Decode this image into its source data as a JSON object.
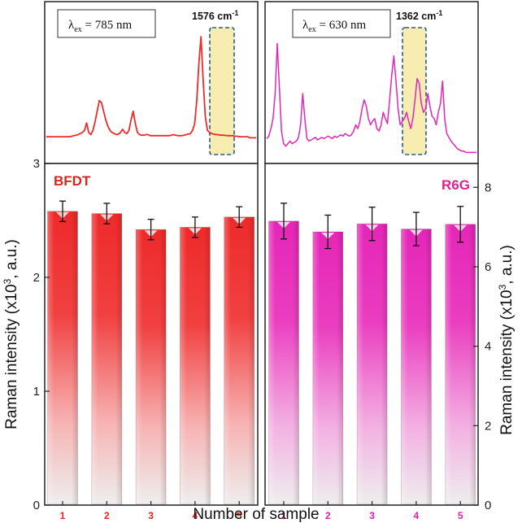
{
  "colors": {
    "bfdt": "#ee2a2a",
    "r6g": "#e525b7",
    "bfdt_label": "#d7261f",
    "r6g_label": "#e0208e",
    "highlight_fill": "#f7edb1",
    "highlight_stroke": "#2e5a8a"
  },
  "chart_data": [
    {
      "id": "spectrum-bfdt",
      "type": "line",
      "excitation": {
        "symbol": "λ",
        "sub": "ex",
        "value": " = 785 nm"
      },
      "peak_label": {
        "text": "1576 cm",
        "sup": "-1"
      },
      "series": [
        {
          "name": "BFDT spectrum",
          "values": [
            0.06,
            0.06,
            0.06,
            0.06,
            0.06,
            0.06,
            0.06,
            0.06,
            0.06,
            0.06,
            0.06,
            0.06,
            0.065,
            0.07,
            0.075,
            0.08,
            0.09,
            0.1,
            0.12,
            0.19,
            0.1,
            0.08,
            0.12,
            0.2,
            0.3,
            0.4,
            0.38,
            0.3,
            0.22,
            0.16,
            0.12,
            0.1,
            0.09,
            0.08,
            0.085,
            0.1,
            0.13,
            0.1,
            0.09,
            0.12,
            0.22,
            0.3,
            0.18,
            0.1,
            0.08,
            0.075,
            0.075,
            0.08,
            0.08,
            0.07,
            0.07,
            0.07,
            0.07,
            0.07,
            0.07,
            0.07,
            0.07,
            0.07,
            0.07,
            0.075,
            0.08,
            0.075,
            0.07,
            0.07,
            0.07,
            0.075,
            0.08,
            0.085,
            0.09,
            0.12,
            0.18,
            0.4,
            0.75,
            1.0,
            0.6,
            0.25,
            0.12,
            0.1,
            0.09,
            0.085,
            0.08,
            0.08,
            0.075,
            0.075,
            0.075,
            0.07,
            0.07,
            0.07,
            0.07,
            0.065,
            0.065,
            0.06,
            0.06,
            0.06,
            0.06,
            0.06,
            0.05,
            0.05,
            0.05,
            0.05
          ]
        }
      ]
    },
    {
      "id": "spectrum-r6g",
      "type": "line",
      "excitation": {
        "symbol": "λ",
        "sub": "ex",
        "value": " = 630 nm"
      },
      "peak_label": {
        "text": "1362 cm",
        "sup": "-1"
      },
      "series": [
        {
          "name": "R6G spectrum",
          "values": [
            0.14,
            0.16,
            0.22,
            0.3,
            0.5,
            0.9,
            0.55,
            0.2,
            0.1,
            0.08,
            0.1,
            0.12,
            0.1,
            0.11,
            0.12,
            0.15,
            0.25,
            0.5,
            0.3,
            0.14,
            0.12,
            0.13,
            0.14,
            0.15,
            0.13,
            0.14,
            0.15,
            0.14,
            0.15,
            0.16,
            0.15,
            0.14,
            0.16,
            0.15,
            0.16,
            0.17,
            0.16,
            0.18,
            0.17,
            0.16,
            0.17,
            0.2,
            0.25,
            0.22,
            0.28,
            0.38,
            0.45,
            0.4,
            0.3,
            0.25,
            0.28,
            0.3,
            0.22,
            0.2,
            0.25,
            0.35,
            0.3,
            0.26,
            0.45,
            0.65,
            0.8,
            0.6,
            0.38,
            0.25,
            0.28,
            0.3,
            0.35,
            0.28,
            0.22,
            0.3,
            0.45,
            0.62,
            0.58,
            0.42,
            0.35,
            0.38,
            0.5,
            0.4,
            0.32,
            0.3,
            0.25,
            0.35,
            0.42,
            0.6,
            0.3,
            0.18,
            0.15,
            0.12,
            0.1,
            0.08,
            0.06,
            0.05,
            0.04,
            0.04,
            0.03,
            0.03,
            0.03,
            0.03,
            0.03,
            0.03
          ]
        }
      ]
    },
    {
      "id": "bars-bfdt",
      "type": "bar",
      "label": "BFDT",
      "categories": [
        "1",
        "2",
        "3",
        "4",
        "5"
      ],
      "values": [
        2.58,
        2.56,
        2.42,
        2.44,
        2.53
      ],
      "errors": [
        0.09,
        0.09,
        0.09,
        0.09,
        0.09
      ],
      "ylim": [
        0,
        3
      ],
      "yticks": [
        "0",
        "1",
        "2",
        "3"
      ],
      "ylabel": "Raman intensity (x10",
      "ylabel_sup": "3",
      "ylabel_end": ", a.u.)"
    },
    {
      "id": "bars-r6g",
      "type": "bar",
      "label": "R6G",
      "categories": [
        "1",
        "2",
        "3",
        "4",
        "5"
      ],
      "values": [
        7.15,
        6.88,
        7.08,
        6.95,
        7.07
      ],
      "errors": [
        0.45,
        0.42,
        0.42,
        0.42,
        0.45
      ],
      "ylim": [
        0,
        8.6
      ],
      "yticks": [
        "0",
        "2",
        "4",
        "6",
        "8"
      ],
      "ylabel": "Raman intensity (x10",
      "ylabel_sup": "3",
      "ylabel_end": ", a.u.)"
    }
  ],
  "xlabel": "Number of sample"
}
